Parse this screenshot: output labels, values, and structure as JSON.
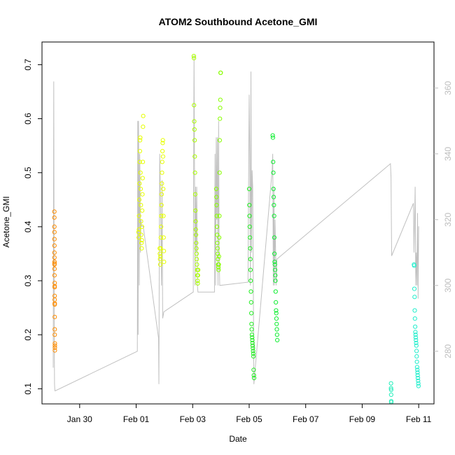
{
  "chart_data": {
    "type": "scatter",
    "title": "ATOM2 Southbound Acetone_GMI",
    "xlabel": "Date",
    "ylabel": "Acetone_GMI",
    "xlim": [
      "2017-01-28T16:00",
      "2017-02-11T13:00"
    ],
    "ylim": [
      0.072,
      0.742
    ],
    "y2lim": [
      264,
      374
    ],
    "x_ticks": [
      {
        "date": "2017-01-30",
        "label": "Jan 30"
      },
      {
        "date": "2017-02-01",
        "label": "Feb 01"
      },
      {
        "date": "2017-02-03",
        "label": "Feb 03"
      },
      {
        "date": "2017-02-05",
        "label": "Feb 05"
      },
      {
        "date": "2017-02-07",
        "label": "Feb 07"
      },
      {
        "date": "2017-02-09",
        "label": "Feb 09"
      },
      {
        "date": "2017-02-11",
        "label": "Feb 11"
      }
    ],
    "y_ticks": [
      "0.1",
      "0.2",
      "0.3",
      "0.4",
      "0.5",
      "0.6",
      "0.7"
    ],
    "y2_ticks": [
      "280",
      "300",
      "320",
      "340",
      "360"
    ],
    "grid": false,
    "legend": "none",
    "colors": {
      "secondary_line": "#c0c0c0",
      "axes": "#000000",
      "right_axis": "#bdbdbd"
    },
    "series": [
      {
        "date": "2017-01-29",
        "color": "#ff8c00",
        "x": [
          "2017-01-29T02:30",
          "2017-01-29T02:30",
          "2017-01-29T02:30",
          "2017-01-29T02:35",
          "2017-01-29T02:35",
          "2017-01-29T02:35",
          "2017-01-29T02:35",
          "2017-01-29T02:35",
          "2017-01-29T02:40",
          "2017-01-29T02:40",
          "2017-01-29T02:40",
          "2017-01-29T02:40",
          "2017-01-29T02:40",
          "2017-01-29T02:45",
          "2017-01-29T02:45",
          "2017-01-29T02:45",
          "2017-01-29T02:45",
          "2017-01-29T02:45",
          "2017-01-29T02:50",
          "2017-01-29T02:50",
          "2017-01-29T02:50",
          "2017-01-29T02:50",
          "2017-01-29T02:50",
          "2017-01-29T02:55",
          "2017-01-29T02:55",
          "2017-01-29T02:55",
          "2017-01-29T02:55"
        ],
        "y": [
          0.428,
          0.417,
          0.4,
          0.39,
          0.377,
          0.365,
          0.352,
          0.343,
          0.335,
          0.332,
          0.33,
          0.322,
          0.31,
          0.296,
          0.29,
          0.288,
          0.272,
          0.265,
          0.258,
          0.256,
          0.233,
          0.21,
          0.2,
          0.184,
          0.18,
          0.176,
          0.171
        ]
      },
      {
        "date": "2017-02-01",
        "color": "#e6ff00",
        "x": [
          "2017-02-01T02:00",
          "2017-02-01T02:10",
          "2017-02-01T02:20",
          "2017-02-01T02:30",
          "2017-02-01T02:40",
          "2017-02-01T02:50",
          "2017-02-01T03:00",
          "2017-02-01T03:10",
          "2017-02-01T03:20",
          "2017-02-01T03:30",
          "2017-02-01T03:40",
          "2017-02-01T03:50",
          "2017-02-01T04:00",
          "2017-02-01T04:10",
          "2017-02-01T04:20",
          "2017-02-01T04:30",
          "2017-02-01T04:40",
          "2017-02-01T04:50",
          "2017-02-01T05:00",
          "2017-02-01T05:10",
          "2017-02-01T05:20",
          "2017-02-01T05:30",
          "2017-02-01T05:40",
          "2017-02-01T05:50",
          "2017-02-01T06:00"
        ],
        "y": [
          0.39,
          0.38,
          0.395,
          0.42,
          0.45,
          0.48,
          0.52,
          0.54,
          0.56,
          0.565,
          0.5,
          0.47,
          0.44,
          0.41,
          0.385,
          0.37,
          0.36,
          0.375,
          0.4,
          0.43,
          0.46,
          0.49,
          0.52,
          0.585,
          0.605
        ]
      },
      {
        "date": "2017-02-01",
        "color": "#e6ff00",
        "x": [
          "2017-02-01T20:00",
          "2017-02-01T20:10",
          "2017-02-01T20:20",
          "2017-02-01T20:30",
          "2017-02-01T20:40",
          "2017-02-01T20:50",
          "2017-02-01T21:00",
          "2017-02-01T21:10",
          "2017-02-01T21:20",
          "2017-02-01T21:30",
          "2017-02-01T21:40",
          "2017-02-01T21:50",
          "2017-02-01T22:00",
          "2017-02-01T22:10",
          "2017-02-01T22:20",
          "2017-02-01T22:30",
          "2017-02-01T22:40",
          "2017-02-01T22:50",
          "2017-02-01T23:00",
          "2017-02-01T23:10",
          "2017-02-01T23:20",
          "2017-02-01T23:30",
          "2017-02-01T23:40"
        ],
        "y": [
          0.36,
          0.35,
          0.34,
          0.33,
          0.345,
          0.36,
          0.38,
          0.4,
          0.42,
          0.44,
          0.46,
          0.48,
          0.5,
          0.52,
          0.54,
          0.555,
          0.56,
          0.53,
          0.47,
          0.42,
          0.38,
          0.355,
          0.335
        ]
      },
      {
        "date": "2017-02-03",
        "color": "#aaff00",
        "x": [
          "2017-02-03T01:00",
          "2017-02-03T01:05",
          "2017-02-03T01:10",
          "2017-02-03T01:20",
          "2017-02-03T01:30",
          "2017-02-03T01:40",
          "2017-02-03T01:50",
          "2017-02-03T02:00",
          "2017-02-03T02:10",
          "2017-02-03T02:20",
          "2017-02-03T02:30",
          "2017-02-03T02:40",
          "2017-02-03T02:50",
          "2017-02-03T03:00",
          "2017-02-03T03:10",
          "2017-02-03T03:20",
          "2017-02-03T03:30",
          "2017-02-03T03:40",
          "2017-02-03T03:50",
          "2017-02-03T04:00",
          "2017-02-03T04:10",
          "2017-02-03T04:20",
          "2017-02-03T04:30",
          "2017-02-03T04:40"
        ],
        "y": [
          0.716,
          0.712,
          0.625,
          0.595,
          0.58,
          0.56,
          0.53,
          0.5,
          0.46,
          0.43,
          0.41,
          0.395,
          0.385,
          0.37,
          0.36,
          0.35,
          0.34,
          0.33,
          0.32,
          0.31,
          0.3,
          0.295,
          0.31,
          0.32
        ]
      },
      {
        "date": "2017-02-03",
        "color": "#88ff00",
        "x": [
          "2017-02-03T20:00",
          "2017-02-03T20:10",
          "2017-02-03T20:20",
          "2017-02-03T20:30",
          "2017-02-03T20:40",
          "2017-02-03T20:50",
          "2017-02-03T21:00",
          "2017-02-03T21:10",
          "2017-02-03T21:20",
          "2017-02-03T21:30",
          "2017-02-03T21:40",
          "2017-02-03T21:50",
          "2017-02-03T22:00",
          "2017-02-03T22:10",
          "2017-02-03T22:20",
          "2017-02-03T22:30",
          "2017-02-03T22:40",
          "2017-02-03T22:50",
          "2017-02-03T23:00",
          "2017-02-03T23:10",
          "2017-02-03T23:20",
          "2017-02-03T23:30",
          "2017-02-03T23:40",
          "2017-02-03T23:50"
        ],
        "y": [
          0.47,
          0.455,
          0.44,
          0.42,
          0.4,
          0.385,
          0.37,
          0.36,
          0.35,
          0.34,
          0.33,
          0.325,
          0.32,
          0.33,
          0.345,
          0.38,
          0.42,
          0.5,
          0.56,
          0.6,
          0.62,
          0.635,
          0.685,
          0.685
        ]
      },
      {
        "date": "2017-02-05",
        "color": "#22ee22",
        "x": [
          "2017-02-05T00:00",
          "2017-02-05T00:10",
          "2017-02-05T00:20",
          "2017-02-05T00:30",
          "2017-02-05T00:40",
          "2017-02-05T00:50",
          "2017-02-05T01:00",
          "2017-02-05T01:10",
          "2017-02-05T01:20",
          "2017-02-05T01:30",
          "2017-02-05T01:40",
          "2017-02-05T01:50",
          "2017-02-05T02:00",
          "2017-02-05T02:10",
          "2017-02-05T02:20",
          "2017-02-05T02:30",
          "2017-02-05T02:40",
          "2017-02-05T02:50",
          "2017-02-05T03:00",
          "2017-02-05T03:10",
          "2017-02-05T03:20",
          "2017-02-05T03:30",
          "2017-02-05T03:40",
          "2017-02-05T03:50",
          "2017-02-05T04:00",
          "2017-02-05T04:10"
        ],
        "y": [
          0.47,
          0.44,
          0.42,
          0.4,
          0.38,
          0.36,
          0.34,
          0.32,
          0.3,
          0.28,
          0.26,
          0.24,
          0.22,
          0.21,
          0.2,
          0.195,
          0.19,
          0.185,
          0.18,
          0.175,
          0.17,
          0.165,
          0.16,
          0.135,
          0.125,
          0.12
        ]
      },
      {
        "date": "2017-02-05",
        "color": "#11ee33",
        "x": [
          "2017-02-05T20:00",
          "2017-02-05T20:10",
          "2017-02-05T20:20",
          "2017-02-05T20:30",
          "2017-02-05T20:40",
          "2017-02-05T20:50",
          "2017-02-05T21:00",
          "2017-02-05T21:10",
          "2017-02-05T21:20",
          "2017-02-05T21:30",
          "2017-02-05T21:40",
          "2017-02-05T21:50",
          "2017-02-05T22:00",
          "2017-02-05T22:10",
          "2017-02-05T22:20",
          "2017-02-05T22:30",
          "2017-02-05T22:40",
          "2017-02-05T22:50",
          "2017-02-05T23:00",
          "2017-02-05T23:10",
          "2017-02-05T23:20",
          "2017-02-05T23:30",
          "2017-02-05T23:40",
          "2017-02-05T23:50"
        ],
        "y": [
          0.569,
          0.565,
          0.52,
          0.5,
          0.47,
          0.455,
          0.44,
          0.42,
          0.38,
          0.35,
          0.335,
          0.33,
          0.32,
          0.31,
          0.3,
          0.28,
          0.26,
          0.245,
          0.24,
          0.23,
          0.22,
          0.21,
          0.2,
          0.19
        ]
      },
      {
        "date": "2017-02-10",
        "color": "#22eebb",
        "x": [
          "2017-02-10T00:30",
          "2017-02-10T00:30",
          "2017-02-10T00:35",
          "2017-02-10T00:35",
          "2017-02-10T00:40",
          "2017-02-10T00:40"
        ],
        "y": [
          0.11,
          0.101,
          0.098,
          0.089,
          0.077,
          0.075
        ]
      },
      {
        "date": "2017-02-10",
        "color": "#22eecc",
        "x": [
          "2017-02-10T20:00",
          "2017-02-10T20:10",
          "2017-02-10T20:20",
          "2017-02-10T20:30",
          "2017-02-10T20:40",
          "2017-02-10T20:50",
          "2017-02-10T21:00",
          "2017-02-10T21:10",
          "2017-02-10T21:20",
          "2017-02-10T21:30",
          "2017-02-10T21:40",
          "2017-02-10T21:50",
          "2017-02-10T22:00",
          "2017-02-10T22:10",
          "2017-02-10T22:20",
          "2017-02-10T22:30",
          "2017-02-10T22:40",
          "2017-02-10T22:50",
          "2017-02-10T23:00",
          "2017-02-10T23:10",
          "2017-02-10T23:20",
          "2017-02-10T23:30",
          "2017-02-10T23:40",
          "2017-02-10T23:50"
        ],
        "y": [
          0.33,
          0.328,
          0.285,
          0.27,
          0.245,
          0.23,
          0.215,
          0.205,
          0.2,
          0.195,
          0.19,
          0.185,
          0.18,
          0.17,
          0.16,
          0.15,
          0.14,
          0.135,
          0.13,
          0.125,
          0.12,
          0.115,
          0.11,
          0.105
        ]
      }
    ],
    "secondary_line": {
      "axis": "right",
      "x": [
        "2017-01-29T01:30",
        "2017-01-29T02:00",
        "2017-01-29T02:20",
        "2017-01-29T02:40",
        "2017-01-29T02:55",
        "2017-01-29T03:10",
        "2017-01-29T03:20",
        "2017-02-01T01:00",
        "2017-02-01T01:20",
        "2017-02-01T01:40",
        "2017-02-01T02:00",
        "2017-02-01T02:20",
        "2017-02-01T02:40",
        "2017-02-01T03:00",
        "2017-02-01T03:20",
        "2017-02-01T03:40",
        "2017-02-01T04:00",
        "2017-02-01T04:30",
        "2017-02-01T06:00",
        "2017-02-01T19:00",
        "2017-02-01T19:20",
        "2017-02-01T19:40",
        "2017-02-01T20:00",
        "2017-02-01T20:30",
        "2017-02-01T21:00",
        "2017-02-01T21:30",
        "2017-02-01T22:00",
        "2017-02-01T22:30",
        "2017-02-01T23:30",
        "2017-02-03T00:30",
        "2017-02-03T00:50",
        "2017-02-03T01:10",
        "2017-02-03T01:30",
        "2017-02-03T02:00",
        "2017-02-03T02:30",
        "2017-02-03T03:00",
        "2017-02-03T03:30",
        "2017-02-03T04:00",
        "2017-02-03T04:30",
        "2017-02-03T18:30",
        "2017-02-03T19:00",
        "2017-02-03T19:30",
        "2017-02-03T20:00",
        "2017-02-03T20:30",
        "2017-02-03T21:00",
        "2017-02-03T21:30",
        "2017-02-03T22:00",
        "2017-02-03T22:30",
        "2017-02-03T23:00",
        "2017-02-04T23:00",
        "2017-02-04T23:30",
        "2017-02-05T00:00",
        "2017-02-05T00:30",
        "2017-02-05T01:00",
        "2017-02-05T01:30",
        "2017-02-05T02:00",
        "2017-02-05T02:30",
        "2017-02-05T03:00",
        "2017-02-05T03:30",
        "2017-02-05T04:00",
        "2017-02-05T19:30",
        "2017-02-05T20:00",
        "2017-02-05T20:30",
        "2017-02-05T21:00",
        "2017-02-05T21:30",
        "2017-02-05T22:00",
        "2017-02-05T22:30",
        "2017-02-05T23:00",
        "2017-02-05T23:30",
        "2017-02-10T00:00",
        "2017-02-10T00:30",
        "2017-02-10T01:00",
        "2017-02-10T19:30",
        "2017-02-10T20:00",
        "2017-02-10T20:30",
        "2017-02-10T21:00",
        "2017-02-10T21:30",
        "2017-02-10T22:00",
        "2017-02-10T22:30",
        "2017-02-10T23:00",
        "2017-02-10T23:30",
        "2017-02-11T00:00"
      ],
      "y": [
        275,
        362,
        290,
        270,
        268,
        268,
        268,
        280,
        350,
        285,
        350,
        330,
        300,
        340,
        330,
        310,
        320,
        318,
        318,
        284,
        270,
        312,
        340,
        330,
        318,
        300,
        332,
        290,
        292,
        298,
        340,
        370,
        340,
        300,
        330,
        310,
        330,
        300,
        298,
        298,
        340,
        300,
        345,
        320,
        345,
        300,
        350,
        310,
        300,
        301,
        330,
        358,
        340,
        300,
        365,
        310,
        335,
        330,
        300,
        270,
        335,
        340,
        300,
        330,
        300,
        320,
        310,
        300,
        308,
        337,
        333,
        309,
        325,
        310,
        320,
        330,
        300,
        310,
        300,
        322,
        296,
        318
      ]
    }
  }
}
